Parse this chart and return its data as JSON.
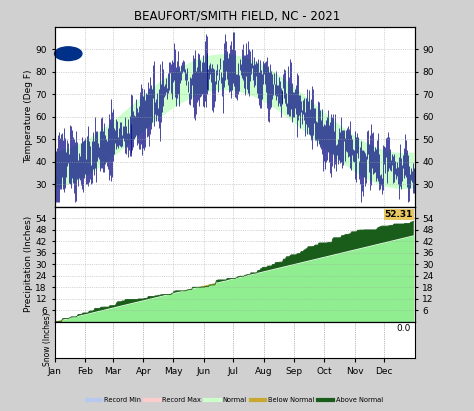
{
  "title": "BEAUFORT/SMITH FIELD, NC - 2021",
  "temp_ylim": [
    20,
    100
  ],
  "temp_yticks": [
    30,
    40,
    50,
    60,
    70,
    80,
    90
  ],
  "precip_ylim": [
    0,
    60
  ],
  "precip_yticks": [
    6,
    12,
    18,
    24,
    30,
    36,
    42,
    48,
    54
  ],
  "snow_ylim": [
    0,
    5
  ],
  "months": [
    "Jan",
    "Feb",
    "Mar",
    "Apr",
    "May",
    "Jun",
    "Jul",
    "Aug",
    "Sep",
    "Oct",
    "Nov",
    "Dec"
  ],
  "bg_color": "#d0d0d0",
  "plot_bg": "#ffffff",
  "grid_color": "#a0a8a0",
  "temp_line_color": "#000080",
  "normal_band_color": "#ccffcc",
  "record_min_color": "#b8c8ee",
  "record_max_color": "#ffcccc",
  "below_normal_precip_color": "#c8a830",
  "above_normal_precip_color": "#1a5c1a",
  "normal_precip_color": "#90ee90",
  "final_precip_value": "52.31",
  "snow_value": "0.0",
  "month_days": [
    0,
    31,
    59,
    90,
    120,
    151,
    181,
    212,
    243,
    273,
    304,
    334,
    365
  ]
}
